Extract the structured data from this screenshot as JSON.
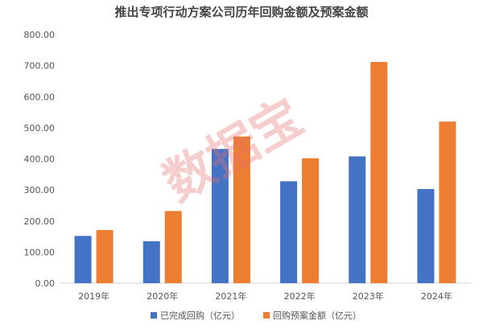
{
  "chart_data": {
    "type": "bar",
    "title": "推出专项行动方案公司历年回购金额及预案金额",
    "categories": [
      "2019年",
      "2020年",
      "2021年",
      "2022年",
      "2023年",
      "2024年"
    ],
    "series": [
      {
        "name": "已完成回购（亿元）",
        "color": "#4472C4",
        "values": [
          152,
          135,
          432,
          328,
          408,
          303
        ]
      },
      {
        "name": "回购预案金额（亿元）",
        "color": "#ED7D31",
        "values": [
          171,
          232,
          472,
          402,
          712,
          520
        ]
      }
    ],
    "yticks": [
      "0.00",
      "100.00",
      "200.00",
      "300.00",
      "400.00",
      "500.00",
      "600.00",
      "700.00",
      "800.00"
    ],
    "ylim": [
      0,
      800
    ],
    "grid": false,
    "legend": "bottom-center",
    "watermark": "数据宝"
  }
}
